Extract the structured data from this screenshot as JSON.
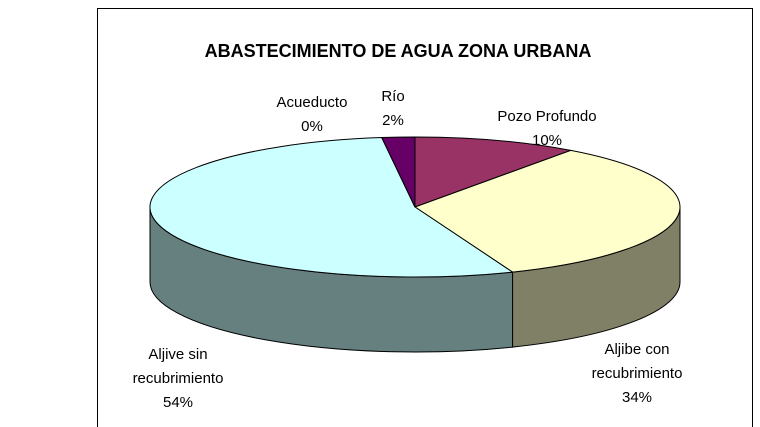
{
  "chart_data": {
    "type": "pie",
    "title": "ABASTECIMIENTO DE AGUA ZONA URBANA",
    "categories": [
      "Pozo Profundo",
      "Aljibe con recubrimiento",
      "Aljive sin recubrimiento",
      "Acueducto",
      "Río"
    ],
    "values": [
      10,
      34,
      54,
      0,
      2
    ],
    "value_labels": [
      "10%",
      "34%",
      "54%",
      "0%",
      "2%"
    ],
    "colors": [
      "#993366",
      "#ffffcc",
      "#ccffff",
      "#000080",
      "#660066"
    ]
  }
}
